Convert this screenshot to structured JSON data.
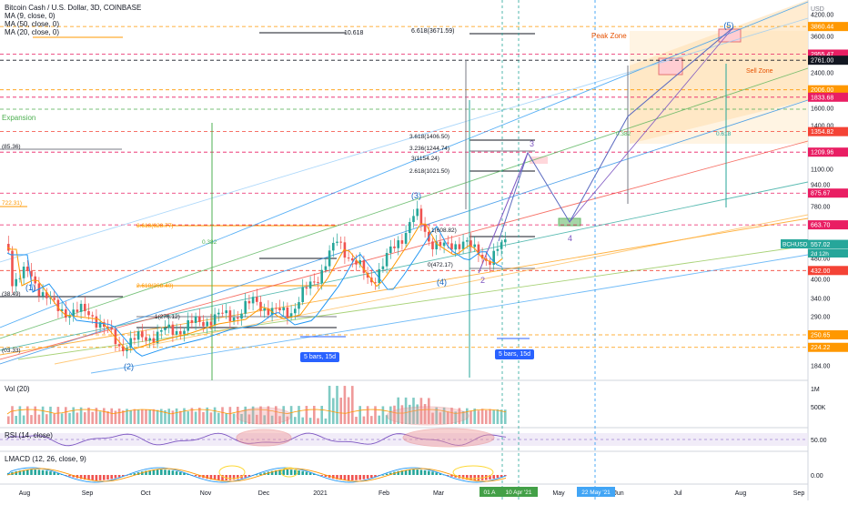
{
  "header": {
    "symbol_line": "Bitcoin Cash / U.S. Dollar, 3D, COINBASE",
    "ma9": "MA (9, close, 0)",
    "ma50": "MA (50, close, 0)",
    "ma20": "MA (20, close, 0)"
  },
  "price_axis": {
    "currency": "USD",
    "ticks": [
      "4200.00",
      "3600.00",
      "2400.00",
      "2000.00",
      "1600.00",
      "1400.00",
      "1100.00",
      "940.00",
      "780.00",
      "560.00",
      "480.00",
      "400.00",
      "340.00",
      "290.00",
      "250.00",
      "220.00",
      "184.00"
    ],
    "tags": [
      {
        "text": "3860.44",
        "bg": "#ff9800"
      },
      {
        "text": "2955.47",
        "bg": "#e91e63"
      },
      {
        "text": "2761.00",
        "bg": "#131722"
      },
      {
        "text": "2006.00",
        "bg": "#ff9800"
      },
      {
        "text": "1833.68",
        "bg": "#e91e63"
      },
      {
        "text": "1354.82",
        "bg": "#f44336"
      },
      {
        "text": "1209.96",
        "bg": "#e91e63"
      },
      {
        "text": "875.67",
        "bg": "#e91e63"
      },
      {
        "text": "663.70",
        "bg": "#e91e63"
      },
      {
        "text": "557.02",
        "bg": "#26a69a"
      },
      {
        "text": "432.00",
        "bg": "#f44336"
      },
      {
        "text": "250.65",
        "bg": "#ff9800"
      },
      {
        "text": "224.22",
        "bg": "#ff9800"
      }
    ],
    "symbol_tag": "BCHUSD",
    "countdown": "2d 12h"
  },
  "time_axis": {
    "labels": [
      "Aug",
      "Sep",
      "Oct",
      "Nov",
      "Dec",
      "2021",
      "Feb",
      "Mar",
      "May",
      "Jun",
      "Jul",
      "Aug",
      "Sep"
    ],
    "highlight_1": "01 A",
    "highlight_2": "10 Apr '21",
    "highlight_3": "22 May '21"
  },
  "annotations": {
    "peak_zone": "Peak Zone",
    "sell_zone": "Sell Zone",
    "expansion": "Expansion",
    "fib_10618": "10.618",
    "fib_6618": "6.618(3671.59)",
    "fib_3618": "3.618(1406.50)",
    "fib_3236": "3.236(1244.74)",
    "fib_3": "3(1154.24)",
    "fib_2618": "2.618(1021.50)",
    "fib_1": "1(608.82)",
    "fib_0": "0(472.17)",
    "fib_3618b": "3.618(628.77)",
    "fib_2618b": "2.618(368.40)",
    "fib_1b": "1(276.12)",
    "fib_0382": "0.382",
    "fib_0382b": "0.382",
    "fib_0618": "0.618",
    "left_8536": "(85.36)",
    "left_72231": "722.31)",
    "left_13849": "(38.49)",
    "left_20333": "(03.33)",
    "bars_left": "5 bars, 15d",
    "bars_right": "5 bars, 15d",
    "wave_1": "(1)",
    "wave_2": "(2)",
    "wave_3": "(3)",
    "wave_4": "(4)",
    "wave_5": "(5)",
    "wave_3_alt": "3",
    "wave_4_alt": "4",
    "wave_2_alt": "2"
  },
  "volume_pane": {
    "label": "Vol (20)",
    "ticks": [
      "1M",
      "500K"
    ]
  },
  "rsi_pane": {
    "label": "RSI (14, close)",
    "ticks": [
      "50.00"
    ]
  },
  "macd_pane": {
    "label": "LMACD (12, 26, close, 9)",
    "ticks": [
      "0.00"
    ]
  },
  "chart_data": {
    "type": "candlestick",
    "symbol": "BCHUSD",
    "interval": "3D",
    "last_price": 557.02,
    "log_scale": true,
    "ylim": [
      170,
      4300
    ]
  }
}
